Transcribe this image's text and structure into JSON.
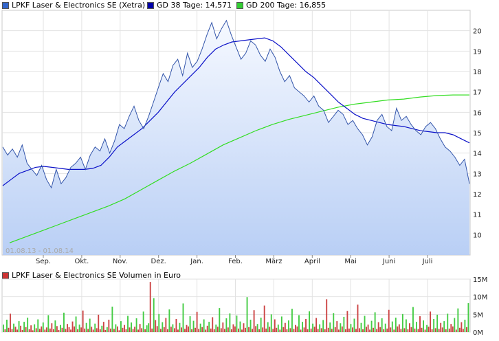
{
  "legend": {
    "price": "LPKF Laser & Electronics SE (Xetra)",
    "gd38": "GD 38 Tage: 14,571",
    "gd200": "GD 200 Tage: 16,855",
    "volume": "LPKF Laser & Electronics SE Volumen in Euro"
  },
  "date_range": "01.08.13 - 01.08.14",
  "colors": {
    "price_line": "#3355aa",
    "price_fill_top": "#f6f9ff",
    "price_fill_bottom": "#b9cff5",
    "gd38": "#0a10c8",
    "gd200": "#33dd22",
    "vol_up": "#44cc44",
    "vol_down": "#cc4444",
    "legend_price": "#3366cc",
    "legend_gd38": "#0000aa",
    "legend_gd200": "#33cc33",
    "legend_vol": "#cc3333"
  },
  "chart_data": [
    {
      "type": "line",
      "ylim": [
        9,
        21
      ],
      "y_ticks": [
        "10",
        "11",
        "12",
        "13",
        "14",
        "15",
        "16",
        "17",
        "18",
        "19",
        "20"
      ],
      "x_ticks": [
        "Sep.",
        "Okt.",
        "Nov.",
        "Dez.",
        "Jan.",
        "Feb.",
        "März",
        "April",
        "Mai",
        "Juni",
        "Juli"
      ],
      "series": [
        {
          "name": "LPKF Laser & Electronics SE (Xetra)",
          "values": [
            14.3,
            13.9,
            14.2,
            13.8,
            14.4,
            13.5,
            13.2,
            12.9,
            13.4,
            12.7,
            12.3,
            13.2,
            12.5,
            12.8,
            13.3,
            13.5,
            13.8,
            13.2,
            13.9,
            14.3,
            14.1,
            14.7,
            14.0,
            14.6,
            15.4,
            15.2,
            15.8,
            16.3,
            15.6,
            15.2,
            15.8,
            16.5,
            17.2,
            17.9,
            17.5,
            18.3,
            18.6,
            17.8,
            18.9,
            18.2,
            18.5,
            19.1,
            19.8,
            20.4,
            19.6,
            20.1,
            20.5,
            19.8,
            19.2,
            18.6,
            18.9,
            19.5,
            19.3,
            18.8,
            18.5,
            19.1,
            18.7,
            18.0,
            17.5,
            17.8,
            17.2,
            17.0,
            16.8,
            16.5,
            16.8,
            16.3,
            16.1,
            15.5,
            15.8,
            16.1,
            15.9,
            15.4,
            15.6,
            15.2,
            14.9,
            14.4,
            14.8,
            15.6,
            15.9,
            15.3,
            15.1,
            16.2,
            15.6,
            15.8,
            15.4,
            15.1,
            14.9,
            15.3,
            15.5,
            15.2,
            14.7,
            14.3,
            14.1,
            13.8,
            13.4,
            13.7,
            12.5
          ]
        },
        {
          "name": "GD 38 Tage",
          "values": [
            12.4,
            12.7,
            13.0,
            13.15,
            13.3,
            13.35,
            13.3,
            13.25,
            13.2,
            13.2,
            13.2,
            13.25,
            13.4,
            13.8,
            14.3,
            14.6,
            14.9,
            15.2,
            15.6,
            16.0,
            16.5,
            17.0,
            17.4,
            17.8,
            18.2,
            18.7,
            19.1,
            19.3,
            19.45,
            19.5,
            19.55,
            19.6,
            19.65,
            19.5,
            19.2,
            18.8,
            18.4,
            18.0,
            17.7,
            17.3,
            16.9,
            16.5,
            16.2,
            15.9,
            15.7,
            15.6,
            15.5,
            15.4,
            15.35,
            15.3,
            15.2,
            15.1,
            15.05,
            15.0,
            15.0,
            14.9,
            14.7,
            14.5
          ]
        },
        {
          "name": "GD 200 Tage",
          "values": [
            9.6,
            9.9,
            10.2,
            10.5,
            10.8,
            11.1,
            11.4,
            11.75,
            12.2,
            12.65,
            13.1,
            13.5,
            13.95,
            14.4,
            14.75,
            15.1,
            15.4,
            15.65,
            15.85,
            16.05,
            16.25,
            16.4,
            16.5,
            16.6,
            16.65,
            16.75,
            16.82,
            16.85,
            16.85
          ]
        }
      ]
    },
    {
      "type": "bar",
      "ylim": [
        0,
        15
      ],
      "y_ticks": [
        "0M",
        "5M",
        "10M",
        "15M"
      ],
      "series": [
        {
          "name": "LPKF Laser & Electronics SE Volumen in Euro",
          "values": [
            2.1,
            0.8,
            3.5,
            1.2,
            5.2,
            0.9,
            2.4,
            1.5,
            0.7,
            3.1,
            1.8,
            0.6,
            2.9,
            1.4,
            4.1,
            0.8,
            1.9,
            0.5,
            2.2,
            1.1,
            3.6,
            0.9,
            1.6,
            2.7,
            0.7,
            1.3,
            4.8,
            1.0,
            2.5,
            0.8,
            3.3,
            1.7,
            0.6,
            2.0,
            1.2,
            5.5,
            0.9,
            2.3,
            1.4,
            0.7,
            3.0,
            1.6,
            4.4,
            0.8,
            2.1,
            1.3,
            6.1,
            1.0,
            2.6,
            0.9,
            3.8,
            1.5,
            0.7,
            2.4,
            1.1,
            4.9,
            0.8,
            1.8,
            2.9,
            0.6,
            1.4,
            3.5,
            1.0,
            7.2,
            0.9,
            2.2,
            1.6,
            0.5,
            3.1,
            1.2,
            2.0,
            0.8,
            4.6,
            1.3,
            2.7,
            0.9,
            1.5,
            3.9,
            0.7,
            2.3,
            1.1,
            5.8,
            0.8,
            1.9,
            2.5,
            14.2,
            1.0,
            9.6,
            3.4,
            1.7,
            5.1,
            0.9,
            2.8,
            1.4,
            4.0,
            0.8,
            6.4,
            1.5,
            2.2,
            1.1,
            3.7,
            0.7,
            2.6,
            1.3,
            8.1,
            0.9,
            2.0,
            1.6,
            4.5,
            0.8,
            3.2,
            1.2,
            5.7,
            0.9,
            2.4,
            1.4,
            3.6,
            0.7,
            1.8,
            2.9,
            1.0,
            4.2,
            0.8,
            2.1,
            1.5,
            6.8,
            1.1,
            2.7,
            0.9,
            3.9,
            1.3,
            5.3,
            0.8,
            2.2,
            1.6,
            4.7,
            1.0,
            3.0,
            0.7,
            2.5,
            1.2,
            9.9,
            1.4,
            3.5,
            0.9,
            6.2,
            1.7,
            2.3,
            0.8,
            4.1,
            1.3,
            7.5,
            1.0,
            2.8,
            1.5,
            5.0,
            0.9,
            3.6,
            1.2,
            2.1,
            0.7,
            4.4,
            1.4,
            2.6,
            0.8,
            3.3,
            1.1,
            6.6,
            0.9,
            2.0,
            1.6,
            4.8,
            0.7,
            2.9,
            1.3,
            3.7,
            0.8,
            5.9,
            1.0,
            2.4,
            1.5,
            4.0,
            0.9,
            2.2,
            1.1,
            3.4,
            0.8,
            9.3,
            1.2,
            2.7,
            0.9,
            5.4,
            1.4,
            3.1,
            0.7,
            2.5,
            1.6,
            4.3,
            0.8,
            6.0,
            1.0,
            2.3,
            1.3,
            3.8,
            0.9,
            7.8,
            1.1,
            2.6,
            0.8,
            4.6,
            1.5,
            2.1,
            0.7,
            3.2,
            1.2,
            5.6,
            0.9,
            2.8,
            1.4,
            3.9,
            0.8,
            2.4,
            1.0,
            6.3,
            1.3,
            3.0,
            0.7,
            4.1,
            1.6,
            2.2,
            0.9,
            5.1,
            1.1,
            3.6,
            0.8,
            2.5,
            1.4,
            7.1,
            1.0,
            2.9,
            0.9,
            4.5,
            1.2,
            3.3,
            0.7,
            2.0,
            1.5,
            5.8,
            0.8,
            3.7,
            1.1,
            4.9,
            0.9,
            2.6,
            1.3,
            3.1,
            0.8,
            5.2,
            1.0,
            2.3,
            1.6,
            4.0,
            0.7,
            6.7,
            1.2,
            2.8,
            0.9,
            3.5,
            1.4,
            8.2
          ]
        }
      ]
    }
  ]
}
